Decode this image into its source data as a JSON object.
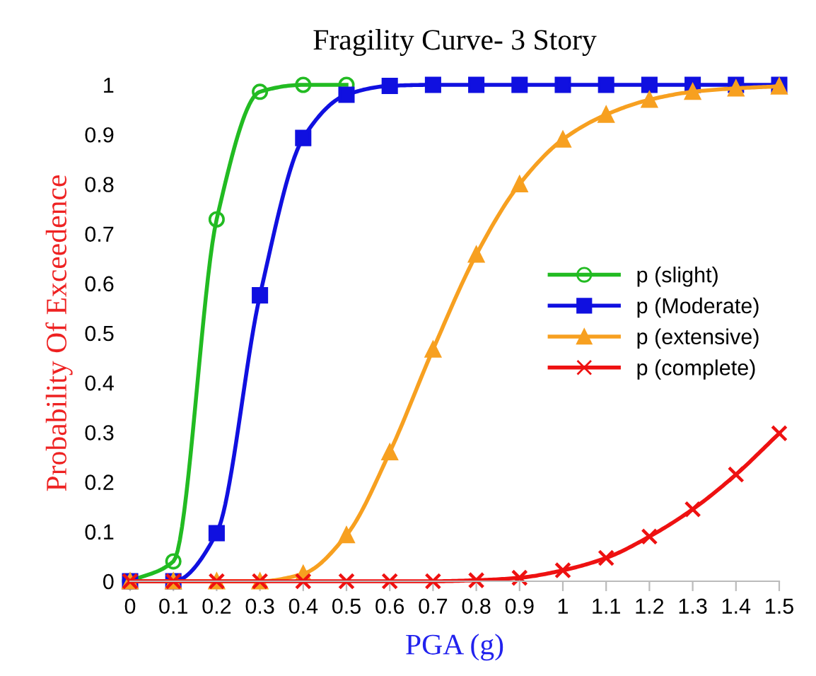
{
  "chart_data": {
    "type": "line",
    "title": "Fragility Curve- 3 Story",
    "xlabel": "PGA (g)",
    "ylabel": "Probability Of Exceedence",
    "xlim": [
      0,
      1.5
    ],
    "ylim": [
      0,
      1
    ],
    "xticks": [
      0,
      0.1,
      0.2,
      0.3,
      0.4,
      0.5,
      0.6,
      0.7,
      0.8,
      0.9,
      1,
      1.1,
      1.2,
      1.3,
      1.4,
      1.5
    ],
    "yticks": [
      0,
      0.1,
      0.2,
      0.3,
      0.4,
      0.5,
      0.6,
      0.7,
      0.8,
      0.9,
      1
    ],
    "grid": false,
    "legend": "right",
    "series": [
      {
        "name": "p (slight)",
        "color": "#22bb22",
        "marker": "circle",
        "x": [
          0,
          0.1,
          0.2,
          0.3,
          0.4,
          0.5
        ],
        "values": [
          0,
          0.04,
          0.729,
          0.986,
          1,
          1
        ]
      },
      {
        "name": "p (Moderate)",
        "color": "#1010e0",
        "marker": "square",
        "x": [
          0,
          0.1,
          0.2,
          0.3,
          0.4,
          0.5,
          0.6,
          0.7,
          0.8,
          0.9,
          1,
          1.1,
          1.2,
          1.3,
          1.4,
          1.5
        ],
        "values": [
          0,
          0,
          0.097,
          0.576,
          0.893,
          0.98,
          0.998,
          1,
          1,
          1,
          1,
          1,
          1,
          1,
          1,
          1
        ]
      },
      {
        "name": "p (extensive)",
        "color": "#f7a020",
        "marker": "triangle",
        "x": [
          0,
          0.1,
          0.2,
          0.3,
          0.4,
          0.5,
          0.6,
          0.7,
          0.8,
          0.9,
          1,
          1.1,
          1.2,
          1.3,
          1.4,
          1.5
        ],
        "values": [
          0,
          0,
          0,
          0,
          0.015,
          0.093,
          0.26,
          0.467,
          0.658,
          0.8,
          0.89,
          0.94,
          0.97,
          0.986,
          0.993,
          0.997
        ]
      },
      {
        "name": "p (complete)",
        "color": "#ee1111",
        "marker": "cross",
        "x": [
          0,
          0.1,
          0.2,
          0.3,
          0.4,
          0.5,
          0.6,
          0.7,
          0.8,
          0.9,
          1,
          1.1,
          1.2,
          1.3,
          1.4,
          1.5
        ],
        "values": [
          0,
          0,
          0,
          0,
          0,
          0,
          0,
          0,
          0.002,
          0.007,
          0.022,
          0.047,
          0.09,
          0.145,
          0.215,
          0.298
        ]
      }
    ]
  }
}
